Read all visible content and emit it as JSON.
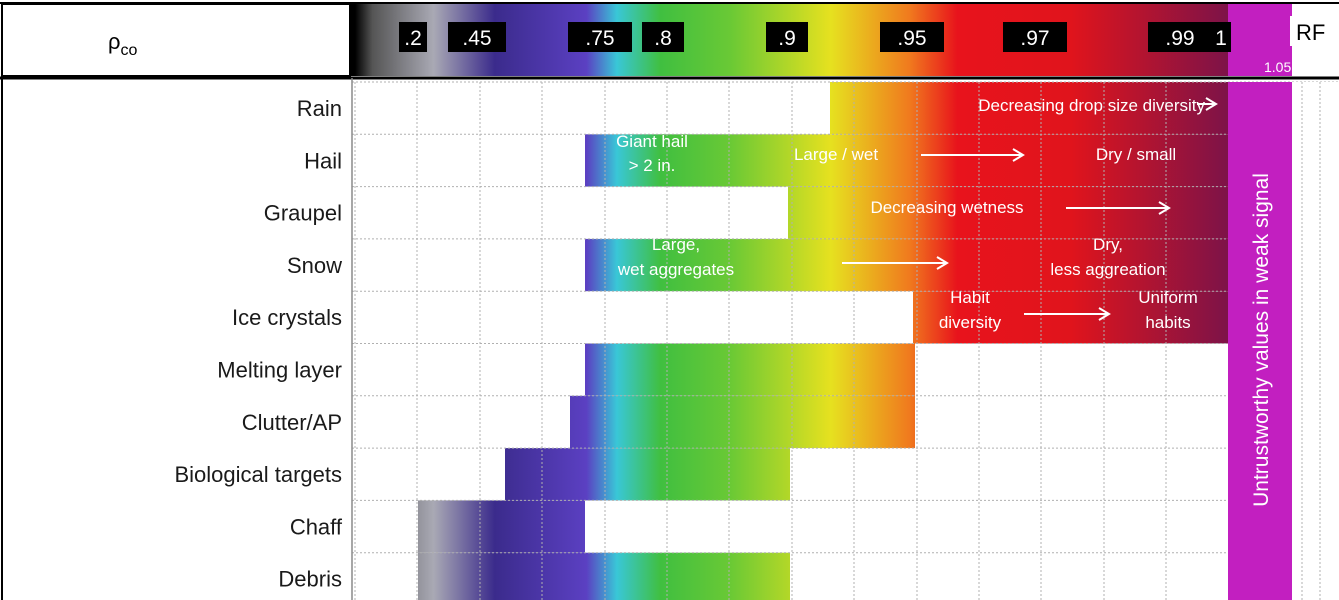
{
  "header_label": "ρco",
  "scale_ticks": [
    ".2",
    ".45",
    ".75",
    ".8",
    ".9",
    ".95",
    ".97",
    ".99",
    "1"
  ],
  "rf_label": "RF",
  "rf_value": "1.05",
  "vertical_note": "Untrustworthy values in weak signal",
  "rows": [
    "Rain",
    "Hail",
    "Graupel",
    "Snow",
    "Ice crystals",
    "Melting layer",
    "Clutter/AP",
    "Biological targets",
    "Chaff",
    "Debris"
  ],
  "annotations": {
    "rain": "Decreasing drop size diversity",
    "hail_giant_1": "Giant hail",
    "hail_giant_2": "> 2 in.",
    "hail_large": "Large / wet",
    "hail_dry": "Dry / small",
    "graupel": "Decreasing wetness",
    "snow_large_1": "Large,",
    "snow_large_2": "wet aggregates",
    "snow_dry_1": "Dry,",
    "snow_dry_2": "less aggreation",
    "ice_habit_1": "Habit",
    "ice_habit_2": "diversity",
    "ice_uniform_1": "Uniform",
    "ice_uniform_2": "habits"
  },
  "colors": {
    "black": "#000000",
    "grey": "#9a9a9a",
    "indigo": "#3a2a8c",
    "blue_violet": "#5a3fc0",
    "cyan": "#39c6d6",
    "green": "#3fbf3f",
    "yellow": "#e6e01f",
    "orange": "#f07a1e",
    "red": "#e8131c",
    "magenta": "#b01e6e",
    "purple": "#c21fc0",
    "grid": "#a8a8a8"
  }
}
